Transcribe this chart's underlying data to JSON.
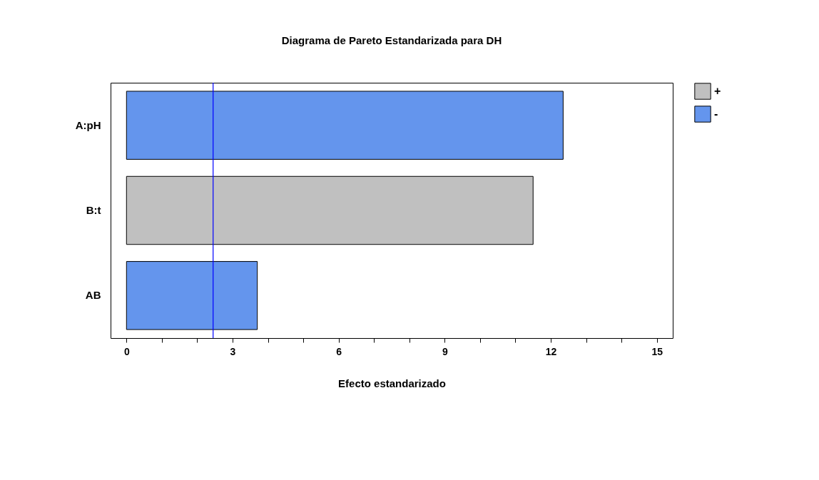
{
  "chart_data": {
    "type": "bar",
    "orientation": "horizontal",
    "title": "Diagrama de Pareto Estandarizada para DH",
    "xlabel": "Efecto estandarizado",
    "categories": [
      "A:pH",
      "B:t",
      "AB"
    ],
    "series": [
      {
        "name": "+",
        "color": "#c0c0c0",
        "values": [
          null,
          11.5,
          null
        ]
      },
      {
        "name": "-",
        "color": "#6495ed",
        "values": [
          12.35,
          null,
          3.7
        ]
      }
    ],
    "xlim": [
      -0.45,
      15.45
    ],
    "xticks": [
      0,
      {
        "value": 1,
        "label": null
      },
      {
        "value": 2,
        "label": null
      },
      3,
      {
        "value": 4,
        "label": null
      },
      {
        "value": 5,
        "label": null
      },
      6,
      {
        "value": 7,
        "label": null
      },
      {
        "value": 8,
        "label": null
      },
      9,
      {
        "value": 10,
        "label": null
      },
      {
        "value": 11,
        "label": null
      },
      12,
      {
        "value": 13,
        "label": null
      },
      {
        "value": 14,
        "label": null
      },
      15
    ],
    "ref_lines": [
      {
        "axis": "x",
        "value": 2.45,
        "color": "#0000ff"
      }
    ],
    "legend": "right",
    "grid": false
  }
}
